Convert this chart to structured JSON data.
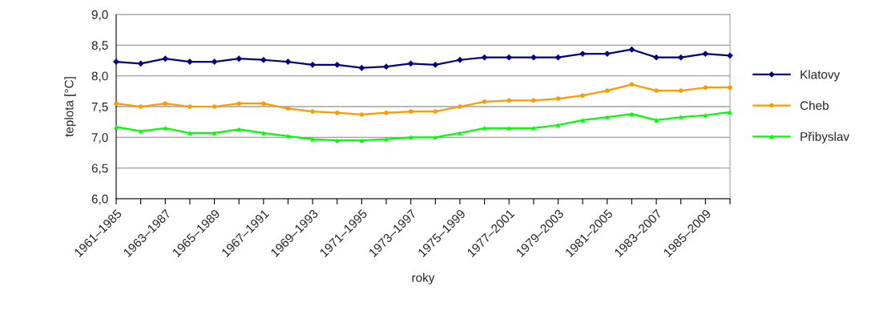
{
  "chart_data": {
    "type": "line",
    "xlabel": "roky",
    "ylabel": "teplota [°C]",
    "categories": [
      "1961–1985",
      null,
      "1963–1987",
      null,
      "1965–1989",
      null,
      "1967–1991",
      null,
      "1969–1993",
      null,
      "1971–1995",
      null,
      "1973–1997",
      null,
      "1975–1999",
      null,
      "1977–2001",
      null,
      "1979–2003",
      null,
      "1981–2005",
      null,
      "1983–2007",
      null,
      "1985–2009",
      null
    ],
    "series": [
      {
        "name": "Klatovy",
        "color": "#000080",
        "marker": "diamond",
        "values": [
          8.23,
          8.2,
          8.28,
          8.23,
          8.23,
          8.28,
          8.26,
          8.23,
          8.18,
          8.18,
          8.13,
          8.15,
          8.2,
          8.18,
          8.26,
          8.3,
          8.3,
          8.3,
          8.3,
          8.36,
          8.36,
          8.43,
          8.3,
          8.3,
          8.36,
          8.33
        ]
      },
      {
        "name": "Cheb",
        "color": "#ff9900",
        "marker": "circle",
        "values": [
          7.55,
          7.5,
          7.55,
          7.5,
          7.5,
          7.55,
          7.55,
          7.47,
          7.42,
          7.4,
          7.37,
          7.4,
          7.42,
          7.42,
          7.5,
          7.58,
          7.6,
          7.6,
          7.63,
          7.68,
          7.76,
          7.86,
          7.76,
          7.76,
          7.81,
          7.81
        ]
      },
      {
        "name": "Přibyslav",
        "color": "#00ff00",
        "marker": "triangle",
        "values": [
          7.17,
          7.1,
          7.15,
          7.07,
          7.07,
          7.13,
          7.07,
          7.02,
          6.97,
          6.95,
          6.95,
          6.97,
          7.0,
          7.0,
          7.07,
          7.15,
          7.15,
          7.15,
          7.2,
          7.28,
          7.33,
          7.38,
          7.28,
          7.33,
          7.36,
          7.41
        ]
      }
    ],
    "ylim": [
      6.0,
      9.0
    ],
    "yticks": [
      {
        "value": 6.0,
        "label": "6,0"
      },
      {
        "value": 6.5,
        "label": "6,5"
      },
      {
        "value": 7.0,
        "label": "7,0"
      },
      {
        "value": 7.5,
        "label": "7,5"
      },
      {
        "value": 8.0,
        "label": "8,0"
      },
      {
        "value": 8.5,
        "label": "8,5"
      },
      {
        "value": 9.0,
        "label": "9,0"
      }
    ],
    "grid": "y",
    "legend": "right",
    "line_style": "solid"
  }
}
